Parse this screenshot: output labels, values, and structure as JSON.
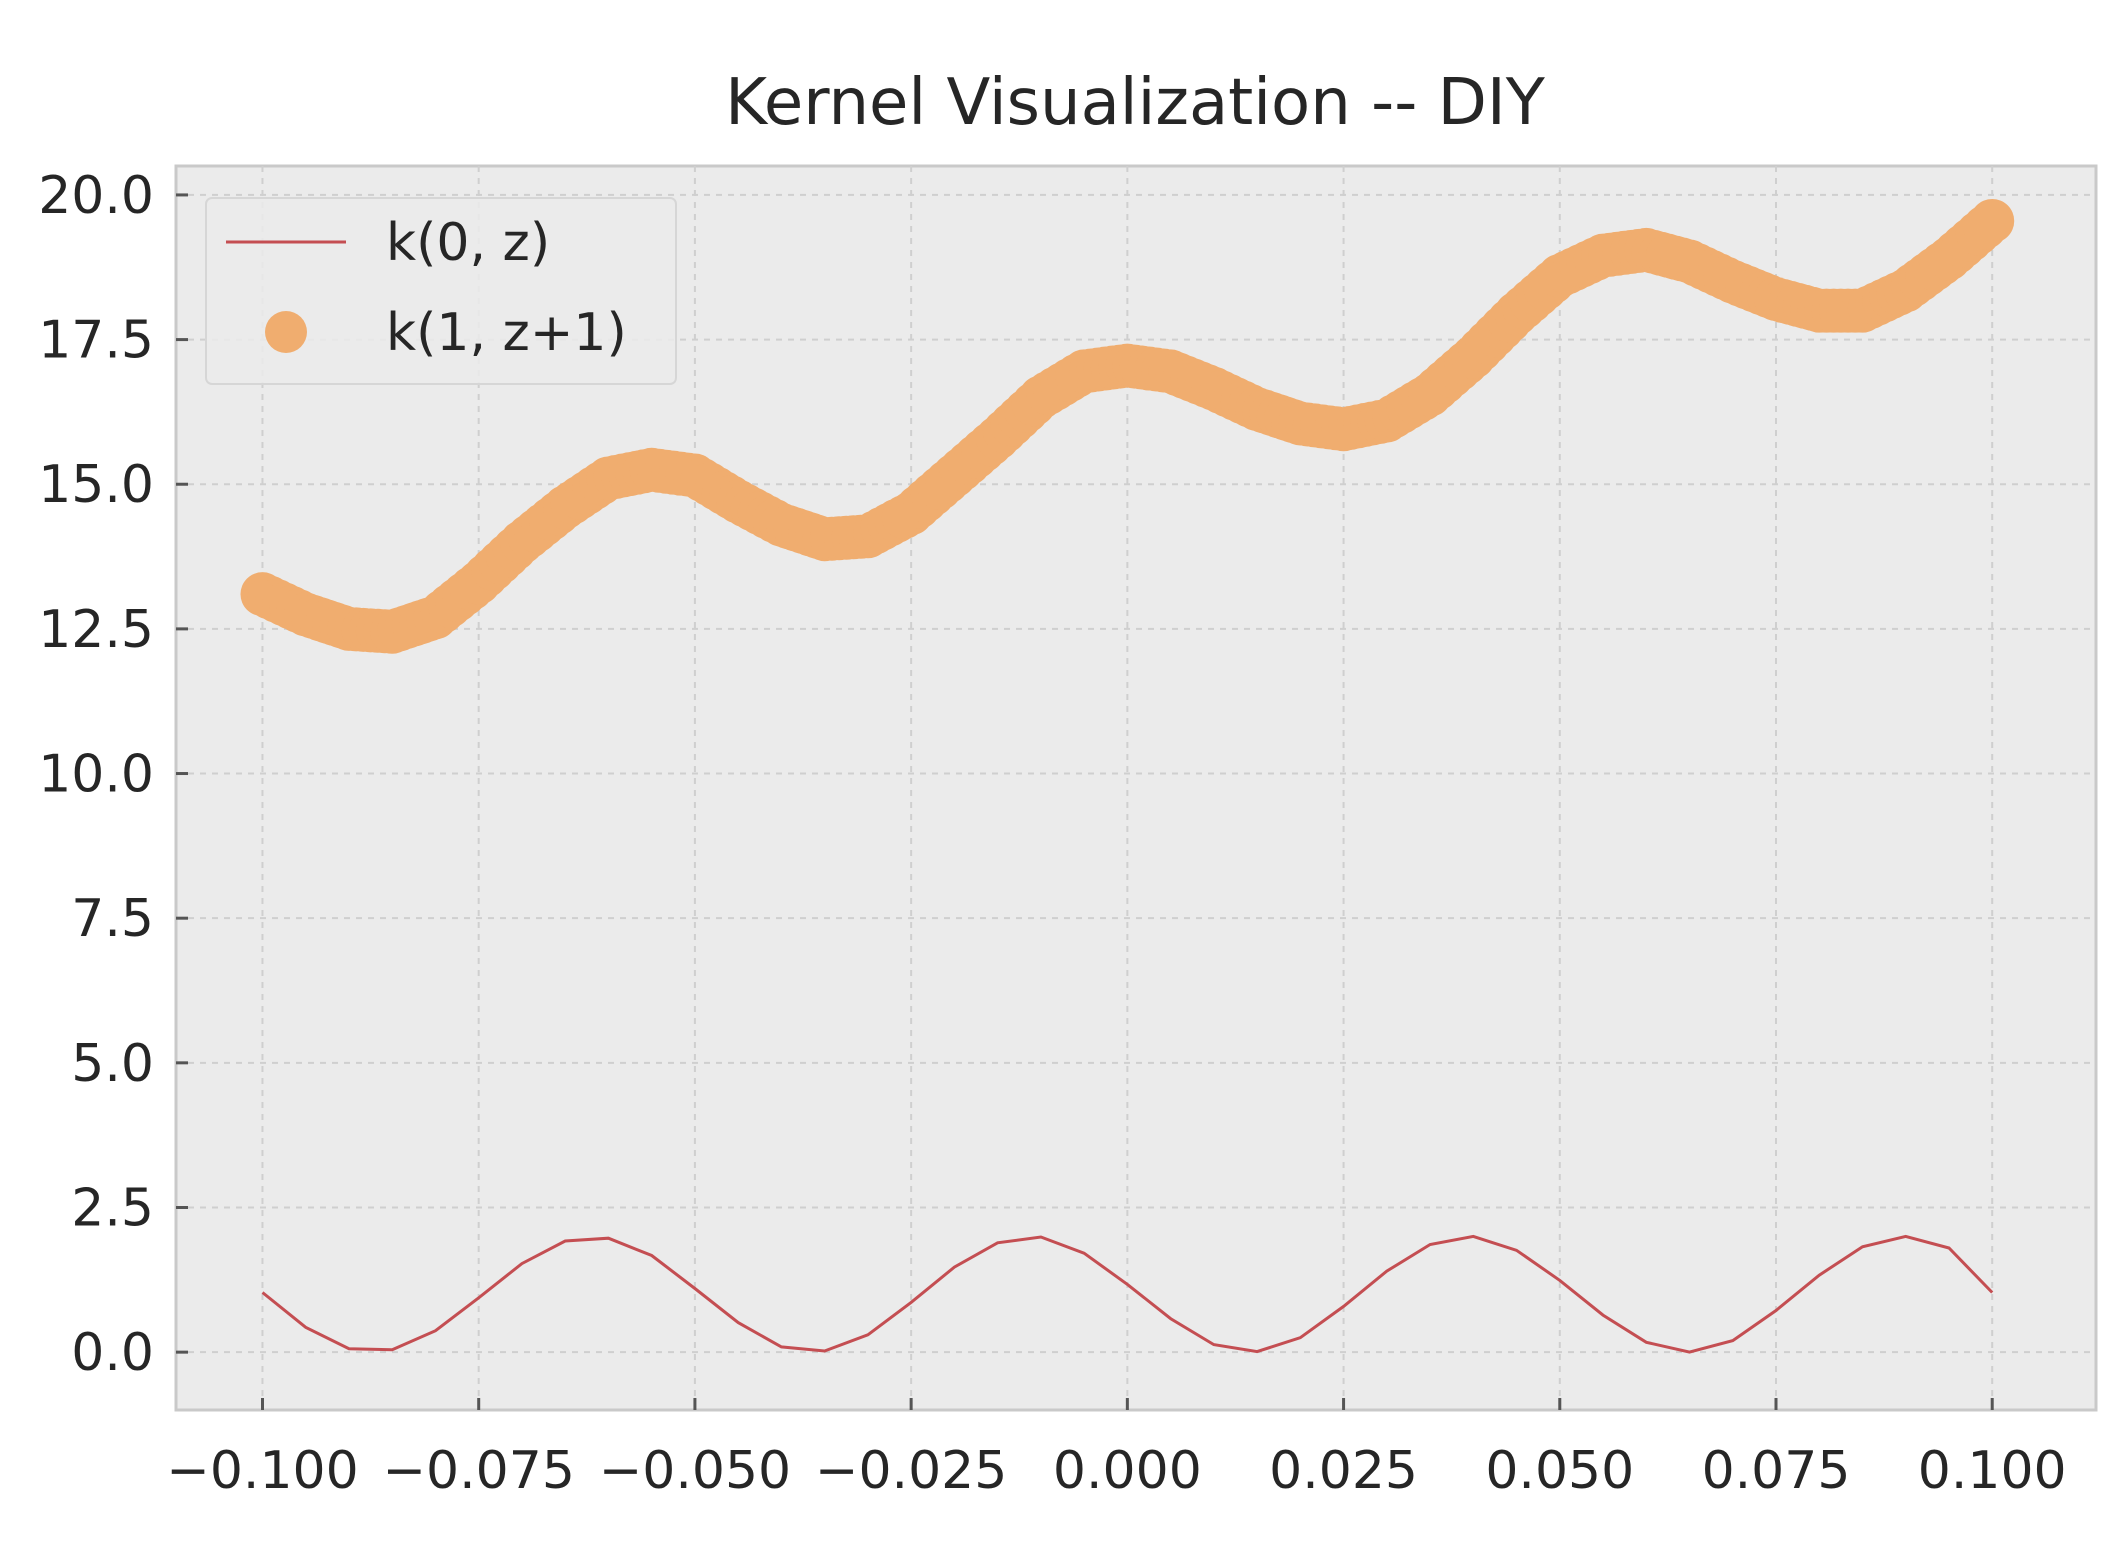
{
  "chart_data": {
    "type": "line",
    "title": "Kernel Visualization -- DIY",
    "xlabel": "",
    "ylabel": "",
    "xlim": [
      -0.11,
      0.112
    ],
    "ylim": [
      -1.0,
      20.5
    ],
    "xticks": [
      -0.1,
      -0.075,
      -0.05,
      -0.025,
      0.0,
      0.025,
      0.05,
      0.075,
      0.1
    ],
    "xtick_labels": [
      "−0.100",
      "−0.075",
      "−0.050",
      "−0.025",
      "0.000",
      "0.025",
      "0.050",
      "0.075",
      "0.100"
    ],
    "yticks": [
      0,
      2.5,
      5.0,
      7.5,
      10.0,
      12.5,
      15.0,
      17.5,
      20.0
    ],
    "ytick_labels": [
      "0.0",
      "2.5",
      "5.0",
      "7.5",
      "10.0",
      "12.5",
      "15.0",
      "17.5",
      "20.0"
    ],
    "grid": true,
    "legend_position": "top-left",
    "background": "#ebebeb",
    "series": [
      {
        "name": "k(0, z)",
        "style": "line",
        "color": "#c44e52",
        "x": [
          -0.1,
          -0.095,
          -0.09,
          -0.085,
          -0.08,
          -0.075,
          -0.07,
          -0.065,
          -0.06,
          -0.055,
          -0.05,
          -0.045,
          -0.04,
          -0.035,
          -0.03,
          -0.025,
          -0.02,
          -0.015,
          -0.01,
          -0.005,
          0.0,
          0.005,
          0.01,
          0.015,
          0.02,
          0.025,
          0.03,
          0.035,
          0.04,
          0.045,
          0.05,
          0.055,
          0.06,
          0.065,
          0.07,
          0.075,
          0.08,
          0.085,
          0.09,
          0.095,
          0.1
        ],
        "y": [
          1.03,
          0.43,
          0.06,
          0.04,
          0.37,
          0.94,
          1.53,
          1.92,
          1.97,
          1.67,
          1.1,
          0.51,
          0.09,
          0.02,
          0.3,
          0.86,
          1.47,
          1.89,
          1.99,
          1.71,
          1.17,
          0.58,
          0.13,
          0.01,
          0.25,
          0.79,
          1.4,
          1.86,
          2.0,
          1.76,
          1.24,
          0.64,
          0.17,
          0.0,
          0.2,
          0.72,
          1.33,
          1.82,
          2.0,
          1.8,
          1.03
        ]
      },
      {
        "name": "k(1, z+1)",
        "style": "scatter",
        "color": "#f0ad6f",
        "x": [
          -0.1,
          -0.095,
          -0.09,
          -0.085,
          -0.08,
          -0.075,
          -0.07,
          -0.065,
          -0.06,
          -0.055,
          -0.05,
          -0.045,
          -0.04,
          -0.035,
          -0.03,
          -0.025,
          -0.02,
          -0.015,
          -0.01,
          -0.005,
          0.0,
          0.005,
          0.01,
          0.015,
          0.02,
          0.025,
          0.03,
          0.035,
          0.04,
          0.045,
          0.05,
          0.055,
          0.06,
          0.065,
          0.07,
          0.075,
          0.08,
          0.085,
          0.09,
          0.095,
          0.1
        ],
        "y": [
          13.1,
          12.75,
          12.5,
          12.45,
          12.7,
          13.3,
          14.0,
          14.6,
          15.1,
          15.25,
          15.15,
          14.7,
          14.3,
          14.05,
          14.1,
          14.5,
          15.15,
          15.8,
          16.5,
          16.95,
          17.05,
          16.95,
          16.65,
          16.3,
          16.05,
          15.95,
          16.1,
          16.55,
          17.2,
          17.95,
          18.6,
          18.95,
          19.05,
          18.85,
          18.5,
          18.2,
          18.0,
          18.0,
          18.35,
          18.9,
          19.55
        ]
      }
    ]
  }
}
